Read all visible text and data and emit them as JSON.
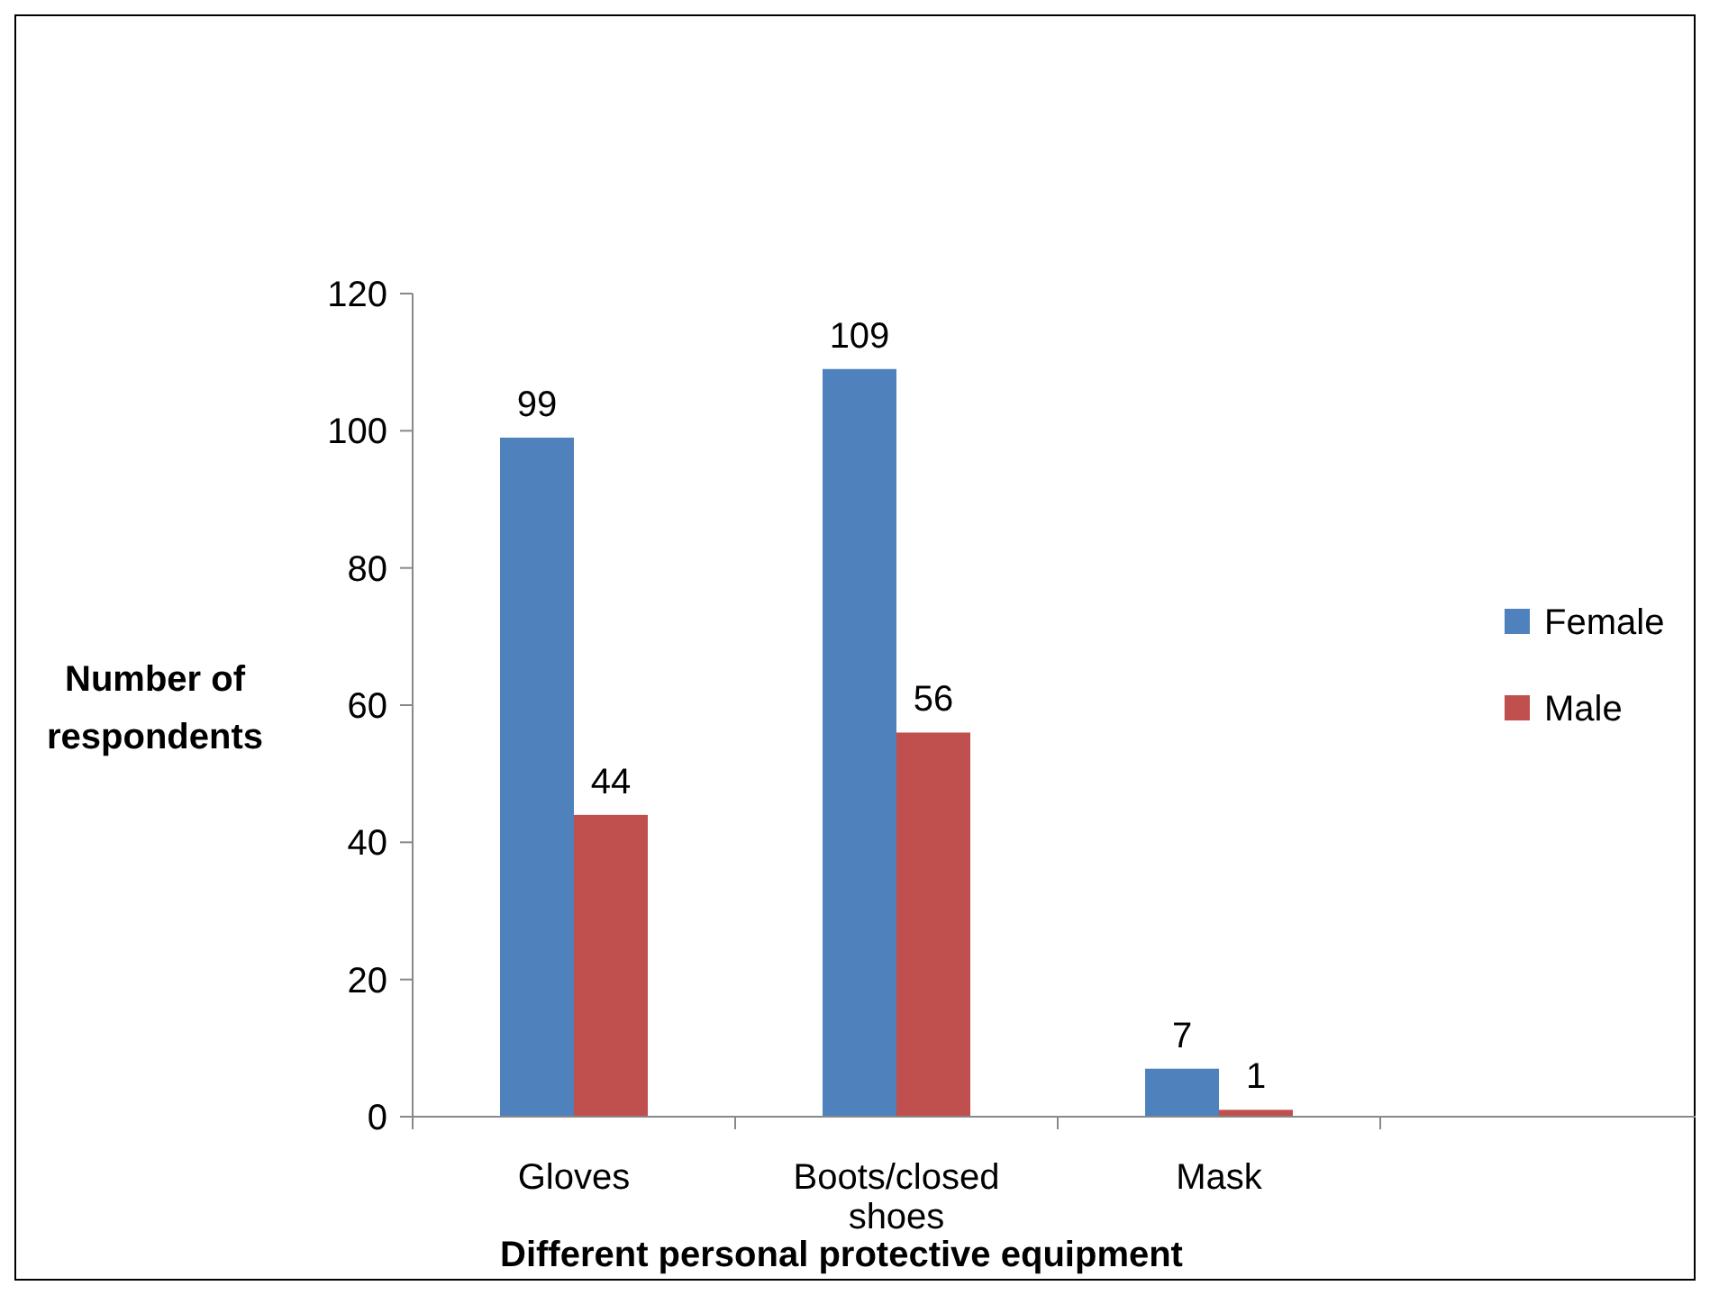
{
  "chart_data": {
    "type": "bar",
    "xlabel": "Different personal protective equipment",
    "ylabel": "Number of respondents",
    "categories": [
      "Gloves",
      "Boots/closed shoes",
      "Mask",
      null
    ],
    "series": [
      {
        "name": "Female",
        "color": "#4f81bd",
        "values": [
          99,
          109,
          7,
          null
        ]
      },
      {
        "name": "Male",
        "color": "#c0504d",
        "values": [
          44,
          56,
          1,
          null
        ]
      }
    ],
    "ylim": [
      0,
      120
    ],
    "yticks": [
      0,
      20,
      40,
      60,
      80,
      100,
      120
    ],
    "data_labels": true,
    "legend": "right",
    "grid": false
  }
}
